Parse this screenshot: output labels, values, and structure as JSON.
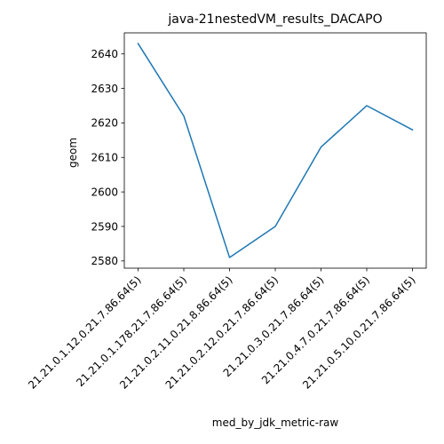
{
  "chart_data": {
    "type": "line",
    "title": "java-21nestedVM_results_DACAPO",
    "xlabel": "med_by_jdk_metric-raw",
    "ylabel": "geom",
    "categories": [
      "21.21.0.1.12.0.21.7.86.64(5)",
      "21.21.0.1.178.21.7.86.64(5)",
      "21.21.0.2.11.0.21.8.86.64(5)",
      "21.21.0.2.12.0.21.7.86.64(5)",
      "21.21.0.3.0.21.7.86.64(5)",
      "21.21.0.4.7.0.21.7.86.64(5)",
      "21.21.0.5.10.0.21.7.86.64(5)"
    ],
    "values": [
      2643,
      2622,
      2581,
      2590,
      2613,
      2625,
      2618
    ],
    "yticks": [
      2580,
      2590,
      2600,
      2610,
      2620,
      2630,
      2640
    ],
    "ylim": [
      2577.9,
      2646.1
    ],
    "line_color": "#1f77b4",
    "grid": false,
    "legend": "none"
  }
}
